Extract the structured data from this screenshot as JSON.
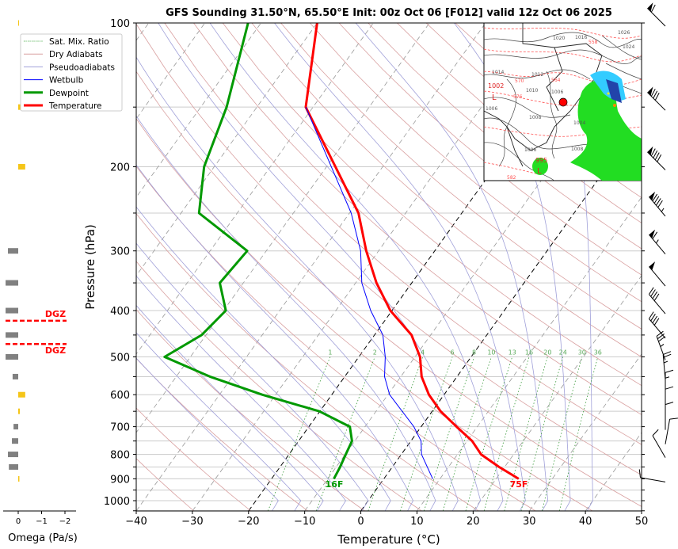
{
  "chart_data": {
    "type": "line",
    "title": "GFS Sounding 31.50°N, 65.50°E Init: 00z Oct 06 [F012] valid 12z Oct 06 2025",
    "xlabel": "Temperature (°C)",
    "ylabel": "Pressure (hPa)",
    "xlim": [
      -40,
      50
    ],
    "ylim": [
      1050,
      100
    ],
    "x_ticks": [
      "−40",
      "−30",
      "−20",
      "−10",
      "0",
      "10",
      "20",
      "30",
      "40",
      "50"
    ],
    "x_tick_values": [
      -40,
      -30,
      -20,
      -10,
      0,
      10,
      20,
      30,
      40,
      50
    ],
    "y_ticks": [
      "100",
      "200",
      "300",
      "400",
      "500",
      "600",
      "700",
      "800",
      "900",
      "1000"
    ],
    "y_tick_values": [
      100,
      200,
      300,
      400,
      500,
      600,
      700,
      800,
      900,
      1000
    ],
    "grid": true,
    "legend_position": "top-left",
    "legend": [
      {
        "label": "Sat. Mix. Ratio",
        "color": "#2ca02c",
        "style": "dotted"
      },
      {
        "label": "Dry Adiabats",
        "color": "#d9a0a0",
        "style": "solid"
      },
      {
        "label": "Pseudoadiabats",
        "color": "#a0a0d9",
        "style": "solid"
      },
      {
        "label": "Wetbulb",
        "color": "#0000ff",
        "style": "solid"
      },
      {
        "label": "Dewpoint",
        "color": "#009900",
        "style": "thick"
      },
      {
        "label": "Temperature",
        "color": "#ff0000",
        "style": "thick"
      }
    ],
    "series": [
      {
        "name": "Temperature",
        "color": "#ff0000",
        "pressure": [
          900,
          850,
          800,
          750,
          700,
          650,
          600,
          550,
          500,
          450,
          400,
          350,
          300,
          250,
          150,
          100
        ],
        "values": [
          24.0,
          19.0,
          14.2,
          10.9,
          6.3,
          1.5,
          -2.7,
          -6.3,
          -9.1,
          -13.4,
          -20.3,
          -26.3,
          -32.2,
          -38.4,
          -61.3,
          -70.0
        ]
      },
      {
        "name": "Dewpoint",
        "color": "#009900",
        "pressure": [
          900,
          850,
          800,
          750,
          700,
          650,
          600,
          550,
          500,
          450,
          400,
          350,
          300,
          250,
          200,
          150,
          100
        ],
        "values": [
          -8.9,
          -9.3,
          -9.9,
          -10.5,
          -12.7,
          -20.1,
          -32.4,
          -44.0,
          -54.6,
          -50.8,
          -49.6,
          -54.2,
          -53.4,
          -66.8,
          -71.8,
          -75.4,
          -82.3
        ]
      },
      {
        "name": "Wetbulb",
        "color": "#0000ff",
        "pressure": [
          900,
          800,
          750,
          700,
          600,
          550,
          500,
          450,
          400,
          350,
          300,
          250,
          150
        ],
        "values": [
          8.7,
          3.6,
          1.8,
          -1.3,
          -9.7,
          -12.9,
          -15.3,
          -18.5,
          -23.8,
          -28.9,
          -33.2,
          -39.7,
          -61.3
        ]
      }
    ],
    "annotations": {
      "surface_temp": "75F",
      "surface_dewpoint": "16F"
    },
    "mixing_ratio_labels": [
      "1",
      "2",
      "4",
      "6",
      "8",
      "10",
      "13",
      "16",
      "20",
      "24",
      "30",
      "36"
    ],
    "mixing_ratio_values": [
      1,
      2,
      4,
      6,
      8,
      10,
      13,
      16,
      20,
      24,
      30,
      36
    ],
    "wind": [
      {
        "p": 100,
        "dir": 315,
        "kt": 60
      },
      {
        "p": 150,
        "dir": 315,
        "kt": 80
      },
      {
        "p": 200,
        "dir": 315,
        "kt": 90
      },
      {
        "p": 250,
        "dir": 320,
        "kt": 95
      },
      {
        "p": 300,
        "dir": 320,
        "kt": 65
      },
      {
        "p": 350,
        "dir": 320,
        "kt": 50
      },
      {
        "p": 400,
        "dir": 320,
        "kt": 40
      },
      {
        "p": 450,
        "dir": 320,
        "kt": 40
      },
      {
        "p": 500,
        "dir": 340,
        "kt": 35
      },
      {
        "p": 550,
        "dir": 355,
        "kt": 25
      },
      {
        "p": 600,
        "dir": 360,
        "kt": 15
      },
      {
        "p": 650,
        "dir": 360,
        "kt": 10
      },
      {
        "p": 700,
        "dir": 360,
        "kt": 10
      },
      {
        "p": 750,
        "dir": 10,
        "kt": 10
      },
      {
        "p": 800,
        "dir": 330,
        "kt": 10
      },
      {
        "p": 900,
        "dir": 280,
        "kt": 10
      }
    ],
    "omega": {
      "xlabel": "Omega (Pa/s)",
      "x_ticks": [
        "0",
        "−1",
        "−2"
      ],
      "x_tick_values": [
        0,
        -1,
        -2
      ],
      "pressure": [
        100,
        150,
        200,
        300,
        350,
        400,
        450,
        500,
        550,
        600,
        650,
        700,
        750,
        800,
        850,
        900
      ],
      "values": [
        -0.02,
        -0.2,
        -0.3,
        0.44,
        0.54,
        0.54,
        0.54,
        0.54,
        0.24,
        -0.3,
        -0.07,
        0.2,
        0.27,
        0.44,
        0.4,
        -0.05
      ],
      "positive_color": "#808080",
      "negative_color": "#f5c518",
      "dgz_label": "DGZ",
      "dgz_pressures": [
        420,
        470
      ],
      "dgz_color": "#ff0000"
    },
    "inset_map": {
      "labels": [
        "1020",
        "1016",
        "1026",
        "1024",
        "1014",
        "1012",
        "1010",
        "1006",
        "1006",
        "1008",
        "1004",
        "1008",
        "1006",
        "1002",
        "995",
        "L",
        "L",
        "558",
        "570",
        "576",
        "582",
        "564"
      ]
    }
  }
}
